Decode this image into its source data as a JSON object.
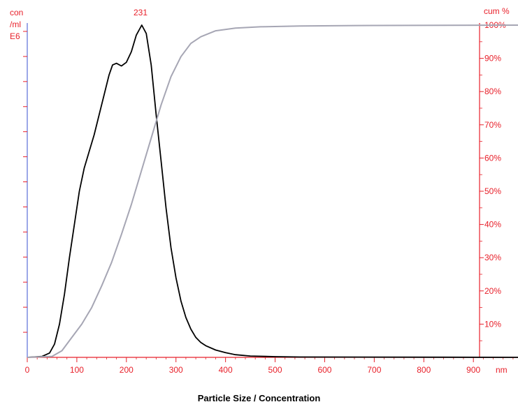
{
  "chart_data": {
    "type": "line",
    "title": "",
    "caption": "Particle Size / Concentration",
    "left_axis_label_lines": [
      "con",
      "/ml",
      "E6"
    ],
    "right_axis_label": "cum %",
    "x_unit": "nm",
    "peak_label": "231",
    "xlim": [
      0,
      990
    ],
    "y_right_lim": [
      0,
      100
    ],
    "y_left_lim": [
      0,
      1
    ],
    "x_ticks": [
      0,
      100,
      200,
      300,
      400,
      500,
      600,
      700,
      800,
      900
    ],
    "x_tick_labels": [
      "0",
      "100",
      "200",
      "300",
      "400",
      "500",
      "600",
      "700",
      "800",
      "900"
    ],
    "y_right_ticks": [
      10,
      20,
      30,
      40,
      50,
      60,
      70,
      80,
      90,
      100
    ],
    "y_right_tick_labels": [
      "10%",
      "20%",
      "30%",
      "40%",
      "50%",
      "60%",
      "70%",
      "80%",
      "90%",
      "100%"
    ],
    "grid": false,
    "series": [
      {
        "role": "concentration",
        "axis": "left",
        "color": "#000000",
        "x": [
          0,
          30,
          45,
          55,
          65,
          75,
          85,
          95,
          105,
          115,
          125,
          135,
          145,
          155,
          165,
          172,
          180,
          190,
          200,
          210,
          220,
          231,
          240,
          250,
          260,
          270,
          280,
          290,
          300,
          310,
          320,
          330,
          340,
          350,
          360,
          380,
          400,
          420,
          450,
          500,
          550,
          990
        ],
        "y": [
          0,
          0.003,
          0.013,
          0.04,
          0.1,
          0.19,
          0.3,
          0.4,
          0.5,
          0.57,
          0.62,
          0.67,
          0.73,
          0.79,
          0.85,
          0.88,
          0.885,
          0.877,
          0.888,
          0.92,
          0.97,
          1.0,
          0.975,
          0.88,
          0.73,
          0.59,
          0.45,
          0.33,
          0.24,
          0.17,
          0.12,
          0.085,
          0.06,
          0.045,
          0.035,
          0.022,
          0.014,
          0.008,
          0.004,
          0.002,
          0.001,
          0.0
        ]
      },
      {
        "role": "cumulative",
        "axis": "right",
        "color": "#a6a6b4",
        "x": [
          0,
          50,
          70,
          90,
          110,
          130,
          150,
          170,
          190,
          210,
          230,
          250,
          270,
          290,
          310,
          330,
          350,
          380,
          420,
          470,
          550,
          700,
          990
        ],
        "y": [
          0,
          0.3,
          2,
          6,
          10,
          15,
          21.5,
          28.5,
          37,
          46,
          56,
          66,
          76,
          84.5,
          90.5,
          94.5,
          96.5,
          98.3,
          99.1,
          99.5,
          99.75,
          99.9,
          100
        ]
      }
    ]
  }
}
